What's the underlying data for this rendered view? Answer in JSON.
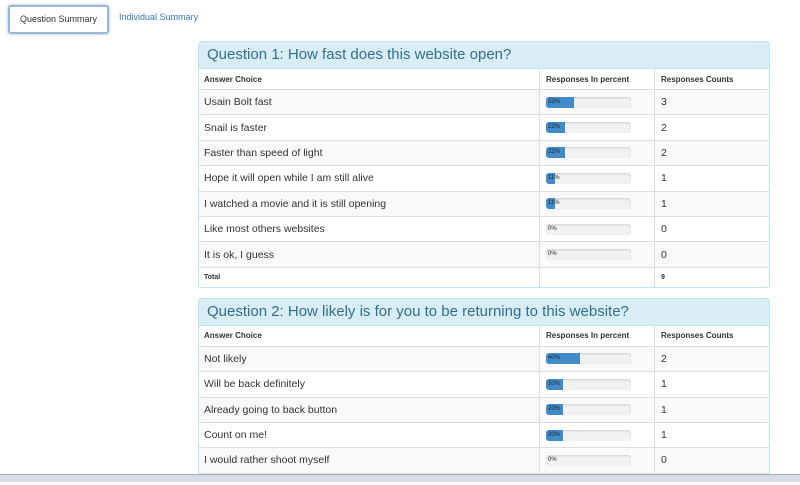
{
  "tabs": [
    "Question Summary",
    "Individual Summary"
  ],
  "questions": [
    {
      "title": "Question 1: How fast does this website open?",
      "headers": [
        "Answer Choice",
        "Responses In percent",
        "Responses Counts"
      ],
      "rows": [
        {
          "choice": "Usain Bolt fast",
          "percent": 33,
          "percent_label": "33%",
          "count": 3
        },
        {
          "choice": "Snail is faster",
          "percent": 22,
          "percent_label": "22%",
          "count": 2
        },
        {
          "choice": "Faster than speed of light",
          "percent": 22,
          "percent_label": "22%",
          "count": 2
        },
        {
          "choice": "Hope it will open while I am still alive",
          "percent": 11,
          "percent_label": "11%",
          "count": 1
        },
        {
          "choice": "I watched a movie and it is still opening",
          "percent": 11,
          "percent_label": "11%",
          "count": 1
        },
        {
          "choice": "Like most others websites",
          "percent": 0,
          "percent_label": "0%",
          "count": 0
        },
        {
          "choice": "It is ok, I guess",
          "percent": 0,
          "percent_label": "0%",
          "count": 0
        }
      ],
      "total_label": "Total",
      "total": 9
    },
    {
      "title": "Question 2: How likely is for you to be returning to this website?",
      "headers": [
        "Answer Choice",
        "Responses In percent",
        "Responses Counts"
      ],
      "rows": [
        {
          "choice": "Not likely",
          "percent": 40,
          "percent_label": "40%",
          "count": 2
        },
        {
          "choice": "Will be back definitely",
          "percent": 20,
          "percent_label": "20%",
          "count": 1
        },
        {
          "choice": "Already going to back button",
          "percent": 20,
          "percent_label": "20%",
          "count": 1
        },
        {
          "choice": "Count on me!",
          "percent": 20,
          "percent_label": "20%",
          "count": 1
        },
        {
          "choice": "I would rather shoot myself",
          "percent": 0,
          "percent_label": "0%",
          "count": 0
        }
      ]
    }
  ]
}
